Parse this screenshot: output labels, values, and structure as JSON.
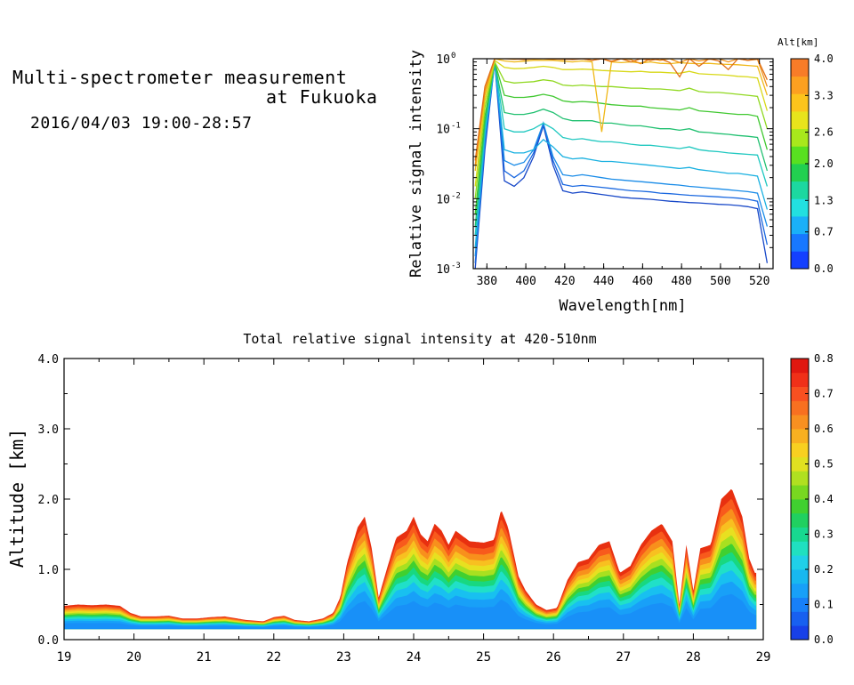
{
  "title": {
    "line1": "Multi-spectrometer measurement",
    "line2": "at Fukuoka",
    "date_range": "2016/04/03 19:00-28:57"
  },
  "chart_data": [
    {
      "type": "line",
      "xlabel": "Wavelength[nm]",
      "ylabel": "Relative signal intensity",
      "xlim": [
        373,
        527
      ],
      "ylim": [
        0.001,
        1
      ],
      "yscale": "log",
      "x_ticks": [
        "380",
        "400",
        "420",
        "440",
        "460",
        "480",
        "500",
        "520"
      ],
      "y_ticks": [
        {
          "base": "10",
          "exp": "-3"
        },
        {
          "base": "10",
          "exp": "-2"
        },
        {
          "base": "10",
          "exp": "-1"
        },
        {
          "base": "10",
          "exp": "0"
        }
      ],
      "colorbar": {
        "label": "Alt[km]",
        "ticks": [
          "0.0",
          "0.7",
          "1.3",
          "2.0",
          "2.6",
          "3.3",
          "4.0"
        ],
        "colors": [
          "#1440ff",
          "#1878ff",
          "#1ab0f8",
          "#22e0e0",
          "#1cd8a0",
          "#22d050",
          "#58e020",
          "#a8e81c",
          "#e8e41c",
          "#fcc41c",
          "#fca020",
          "#f87c28"
        ]
      },
      "x": [
        374,
        379,
        384,
        389,
        394,
        399,
        404,
        409,
        414,
        419,
        424,
        429,
        434,
        439,
        444,
        449,
        454,
        459,
        464,
        469,
        474,
        479,
        484,
        489,
        494,
        499,
        504,
        509,
        514,
        519,
        524
      ],
      "series": [
        {
          "altitude_km": 0.3,
          "color": "#1848c8",
          "values": [
            0.001,
            0.05,
            0.9,
            0.018,
            0.015,
            0.02,
            0.04,
            0.11,
            0.03,
            0.013,
            0.012,
            0.0125,
            0.012,
            0.0115,
            0.011,
            0.0105,
            0.0102,
            0.01,
            0.0098,
            0.0095,
            0.0092,
            0.009,
            0.0088,
            0.0087,
            0.0085,
            0.0083,
            0.0082,
            0.008,
            0.0077,
            0.0072,
            0.0012
          ]
        },
        {
          "altitude_km": 0.5,
          "color": "#1a68e0",
          "values": [
            0.0012,
            0.06,
            0.9,
            0.025,
            0.02,
            0.025,
            0.045,
            0.12,
            0.035,
            0.016,
            0.015,
            0.0155,
            0.015,
            0.0145,
            0.014,
            0.0135,
            0.013,
            0.0128,
            0.0125,
            0.012,
            0.0118,
            0.0115,
            0.0112,
            0.011,
            0.0108,
            0.0106,
            0.0104,
            0.0102,
            0.0098,
            0.0092,
            0.0022
          ]
        },
        {
          "altitude_km": 0.9,
          "color": "#1a8ce8",
          "values": [
            0.0015,
            0.07,
            0.9,
            0.035,
            0.03,
            0.033,
            0.05,
            0.12,
            0.04,
            0.022,
            0.021,
            0.022,
            0.021,
            0.02,
            0.019,
            0.0185,
            0.018,
            0.0175,
            0.017,
            0.0165,
            0.016,
            0.0156,
            0.015,
            0.0146,
            0.0142,
            0.0138,
            0.0134,
            0.013,
            0.0126,
            0.012,
            0.004
          ]
        },
        {
          "altitude_km": 1.2,
          "color": "#18b0e0",
          "values": [
            0.002,
            0.08,
            0.9,
            0.05,
            0.045,
            0.045,
            0.05,
            0.07,
            0.055,
            0.04,
            0.037,
            0.038,
            0.036,
            0.034,
            0.034,
            0.033,
            0.032,
            0.031,
            0.03,
            0.029,
            0.028,
            0.027,
            0.028,
            0.026,
            0.025,
            0.024,
            0.023,
            0.023,
            0.022,
            0.021,
            0.007
          ]
        },
        {
          "altitude_km": 1.5,
          "color": "#20c8c0",
          "values": [
            0.003,
            0.1,
            0.9,
            0.1,
            0.09,
            0.09,
            0.1,
            0.12,
            0.1,
            0.075,
            0.07,
            0.072,
            0.068,
            0.065,
            0.065,
            0.063,
            0.06,
            0.058,
            0.058,
            0.056,
            0.054,
            0.052,
            0.055,
            0.05,
            0.048,
            0.047,
            0.045,
            0.044,
            0.043,
            0.042,
            0.015
          ]
        },
        {
          "altitude_km": 1.8,
          "color": "#20c070",
          "values": [
            0.004,
            0.12,
            0.9,
            0.17,
            0.16,
            0.16,
            0.17,
            0.19,
            0.17,
            0.14,
            0.13,
            0.13,
            0.13,
            0.12,
            0.12,
            0.115,
            0.11,
            0.11,
            0.105,
            0.1,
            0.1,
            0.095,
            0.1,
            0.09,
            0.088,
            0.085,
            0.083,
            0.08,
            0.078,
            0.075,
            0.025
          ]
        },
        {
          "altitude_km": 2.1,
          "color": "#40c830",
          "values": [
            0.006,
            0.15,
            0.9,
            0.3,
            0.28,
            0.28,
            0.29,
            0.31,
            0.29,
            0.25,
            0.24,
            0.245,
            0.24,
            0.23,
            0.22,
            0.215,
            0.21,
            0.21,
            0.2,
            0.195,
            0.19,
            0.185,
            0.2,
            0.18,
            0.175,
            0.17,
            0.165,
            0.16,
            0.16,
            0.15,
            0.05
          ]
        },
        {
          "altitude_km": 2.5,
          "color": "#90d820",
          "values": [
            0.01,
            0.2,
            0.9,
            0.48,
            0.45,
            0.46,
            0.47,
            0.5,
            0.48,
            0.42,
            0.41,
            0.42,
            0.41,
            0.4,
            0.4,
            0.39,
            0.38,
            0.38,
            0.37,
            0.37,
            0.36,
            0.35,
            0.38,
            0.34,
            0.33,
            0.33,
            0.32,
            0.31,
            0.3,
            0.29,
            0.1
          ]
        },
        {
          "altitude_km": 2.9,
          "color": "#d8d818",
          "values": [
            0.015,
            0.25,
            0.95,
            0.75,
            0.72,
            0.73,
            0.75,
            0.78,
            0.75,
            0.7,
            0.7,
            0.71,
            0.7,
            0.68,
            0.67,
            0.66,
            0.65,
            0.66,
            0.64,
            0.64,
            0.63,
            0.62,
            0.66,
            0.61,
            0.6,
            0.59,
            0.58,
            0.56,
            0.55,
            0.53,
            0.18
          ]
        },
        {
          "altitude_km": 3.2,
          "color": "#f0b818",
          "values": [
            0.025,
            0.3,
            1.0,
            0.93,
            0.9,
            0.92,
            0.95,
            0.95,
            0.95,
            0.92,
            0.9,
            0.93,
            0.9,
            0.09,
            0.9,
            0.88,
            0.9,
            0.87,
            0.9,
            0.86,
            0.85,
            0.88,
            0.86,
            0.85,
            0.86,
            0.84,
            0.83,
            0.82,
            0.8,
            0.78,
            0.3
          ]
        },
        {
          "altitude_km": 3.6,
          "color": "#f09018",
          "values": [
            0.03,
            0.35,
            1.0,
            1.0,
            0.98,
            1.0,
            0.99,
            1.0,
            1.0,
            0.97,
            0.99,
            1.0,
            0.95,
            1.0,
            0.9,
            1.0,
            0.97,
            0.85,
            1.0,
            0.95,
            1.0,
            0.88,
            1.0,
            0.93,
            0.98,
            1.0,
            0.9,
            1.0,
            0.95,
            0.98,
            0.4
          ]
        },
        {
          "altitude_km": 3.9,
          "color": "#e07018",
          "values": [
            0.035,
            0.4,
            1.0,
            1.0,
            1.0,
            0.97,
            1.0,
            1.0,
            0.98,
            1.0,
            0.97,
            1.0,
            0.95,
            1.0,
            0.92,
            1.0,
            0.9,
            1.0,
            0.95,
            1.0,
            0.88,
            0.55,
            1.0,
            0.78,
            1.0,
            0.93,
            0.7,
            1.0,
            0.95,
            1.0,
            0.5
          ]
        }
      ]
    },
    {
      "type": "heatmap",
      "title": "Total relative signal intensity at 420-510nm",
      "xlabel": "",
      "ylabel": "Altitude [km]",
      "xlim": [
        19,
        29
      ],
      "ylim": [
        0,
        4
      ],
      "x_ticks": [
        "19",
        "20",
        "21",
        "22",
        "23",
        "24",
        "25",
        "26",
        "27",
        "28",
        "29"
      ],
      "y_ticks": [
        "0.0",
        "1.0",
        "2.0",
        "3.0",
        "4.0"
      ],
      "colorbar": {
        "ticks": [
          "0.0",
          "0.1",
          "0.2",
          "0.3",
          "0.4",
          "0.5",
          "0.6",
          "0.7",
          "0.8"
        ],
        "colors": [
          "#1840e8",
          "#1860f0",
          "#1880f8",
          "#18a0f8",
          "#18b8f0",
          "#20d0e8",
          "#20e0c0",
          "#18d890",
          "#20d060",
          "#40d030",
          "#78d820",
          "#b0e020",
          "#e0e020",
          "#f8d020",
          "#f8b020",
          "#f89020",
          "#f87020",
          "#f85020",
          "#f03018",
          "#e01810"
        ]
      },
      "layer_top_km": [
        [
          19.0,
          0.48
        ],
        [
          19.2,
          0.5
        ],
        [
          19.4,
          0.49
        ],
        [
          19.6,
          0.5
        ],
        [
          19.8,
          0.48
        ],
        [
          19.95,
          0.38
        ],
        [
          20.1,
          0.33
        ],
        [
          20.3,
          0.33
        ],
        [
          20.5,
          0.34
        ],
        [
          20.7,
          0.3
        ],
        [
          20.9,
          0.3
        ],
        [
          21.1,
          0.32
        ],
        [
          21.3,
          0.33
        ],
        [
          21.6,
          0.28
        ],
        [
          21.85,
          0.26
        ],
        [
          22.0,
          0.32
        ],
        [
          22.15,
          0.34
        ],
        [
          22.3,
          0.28
        ],
        [
          22.5,
          0.26
        ],
        [
          22.7,
          0.3
        ],
        [
          22.85,
          0.38
        ],
        [
          22.95,
          0.6
        ],
        [
          23.05,
          1.1
        ],
        [
          23.2,
          1.6
        ],
        [
          23.3,
          1.75
        ],
        [
          23.4,
          1.3
        ],
        [
          23.5,
          0.6
        ],
        [
          23.6,
          0.95
        ],
        [
          23.75,
          1.45
        ],
        [
          23.9,
          1.55
        ],
        [
          24.0,
          1.75
        ],
        [
          24.1,
          1.5
        ],
        [
          24.2,
          1.4
        ],
        [
          24.3,
          1.65
        ],
        [
          24.4,
          1.55
        ],
        [
          24.5,
          1.35
        ],
        [
          24.6,
          1.55
        ],
        [
          24.8,
          1.4
        ],
        [
          25.0,
          1.38
        ],
        [
          25.15,
          1.42
        ],
        [
          25.25,
          1.85
        ],
        [
          25.35,
          1.6
        ],
        [
          25.5,
          0.9
        ],
        [
          25.6,
          0.7
        ],
        [
          25.75,
          0.5
        ],
        [
          25.9,
          0.42
        ],
        [
          26.05,
          0.45
        ],
        [
          26.2,
          0.85
        ],
        [
          26.35,
          1.1
        ],
        [
          26.5,
          1.15
        ],
        [
          26.65,
          1.35
        ],
        [
          26.8,
          1.4
        ],
        [
          26.95,
          0.95
        ],
        [
          27.1,
          1.05
        ],
        [
          27.25,
          1.35
        ],
        [
          27.4,
          1.55
        ],
        [
          27.55,
          1.65
        ],
        [
          27.7,
          1.4
        ],
        [
          27.8,
          0.5
        ],
        [
          27.9,
          1.35
        ],
        [
          28.0,
          0.7
        ],
        [
          28.1,
          1.3
        ],
        [
          28.25,
          1.35
        ],
        [
          28.4,
          2.0
        ],
        [
          28.55,
          2.15
        ],
        [
          28.7,
          1.75
        ],
        [
          28.8,
          1.15
        ],
        [
          28.88,
          0.95
        ]
      ],
      "data_x_range": [
        19,
        28.9
      ],
      "layer_base_km": 0.15
    }
  ]
}
